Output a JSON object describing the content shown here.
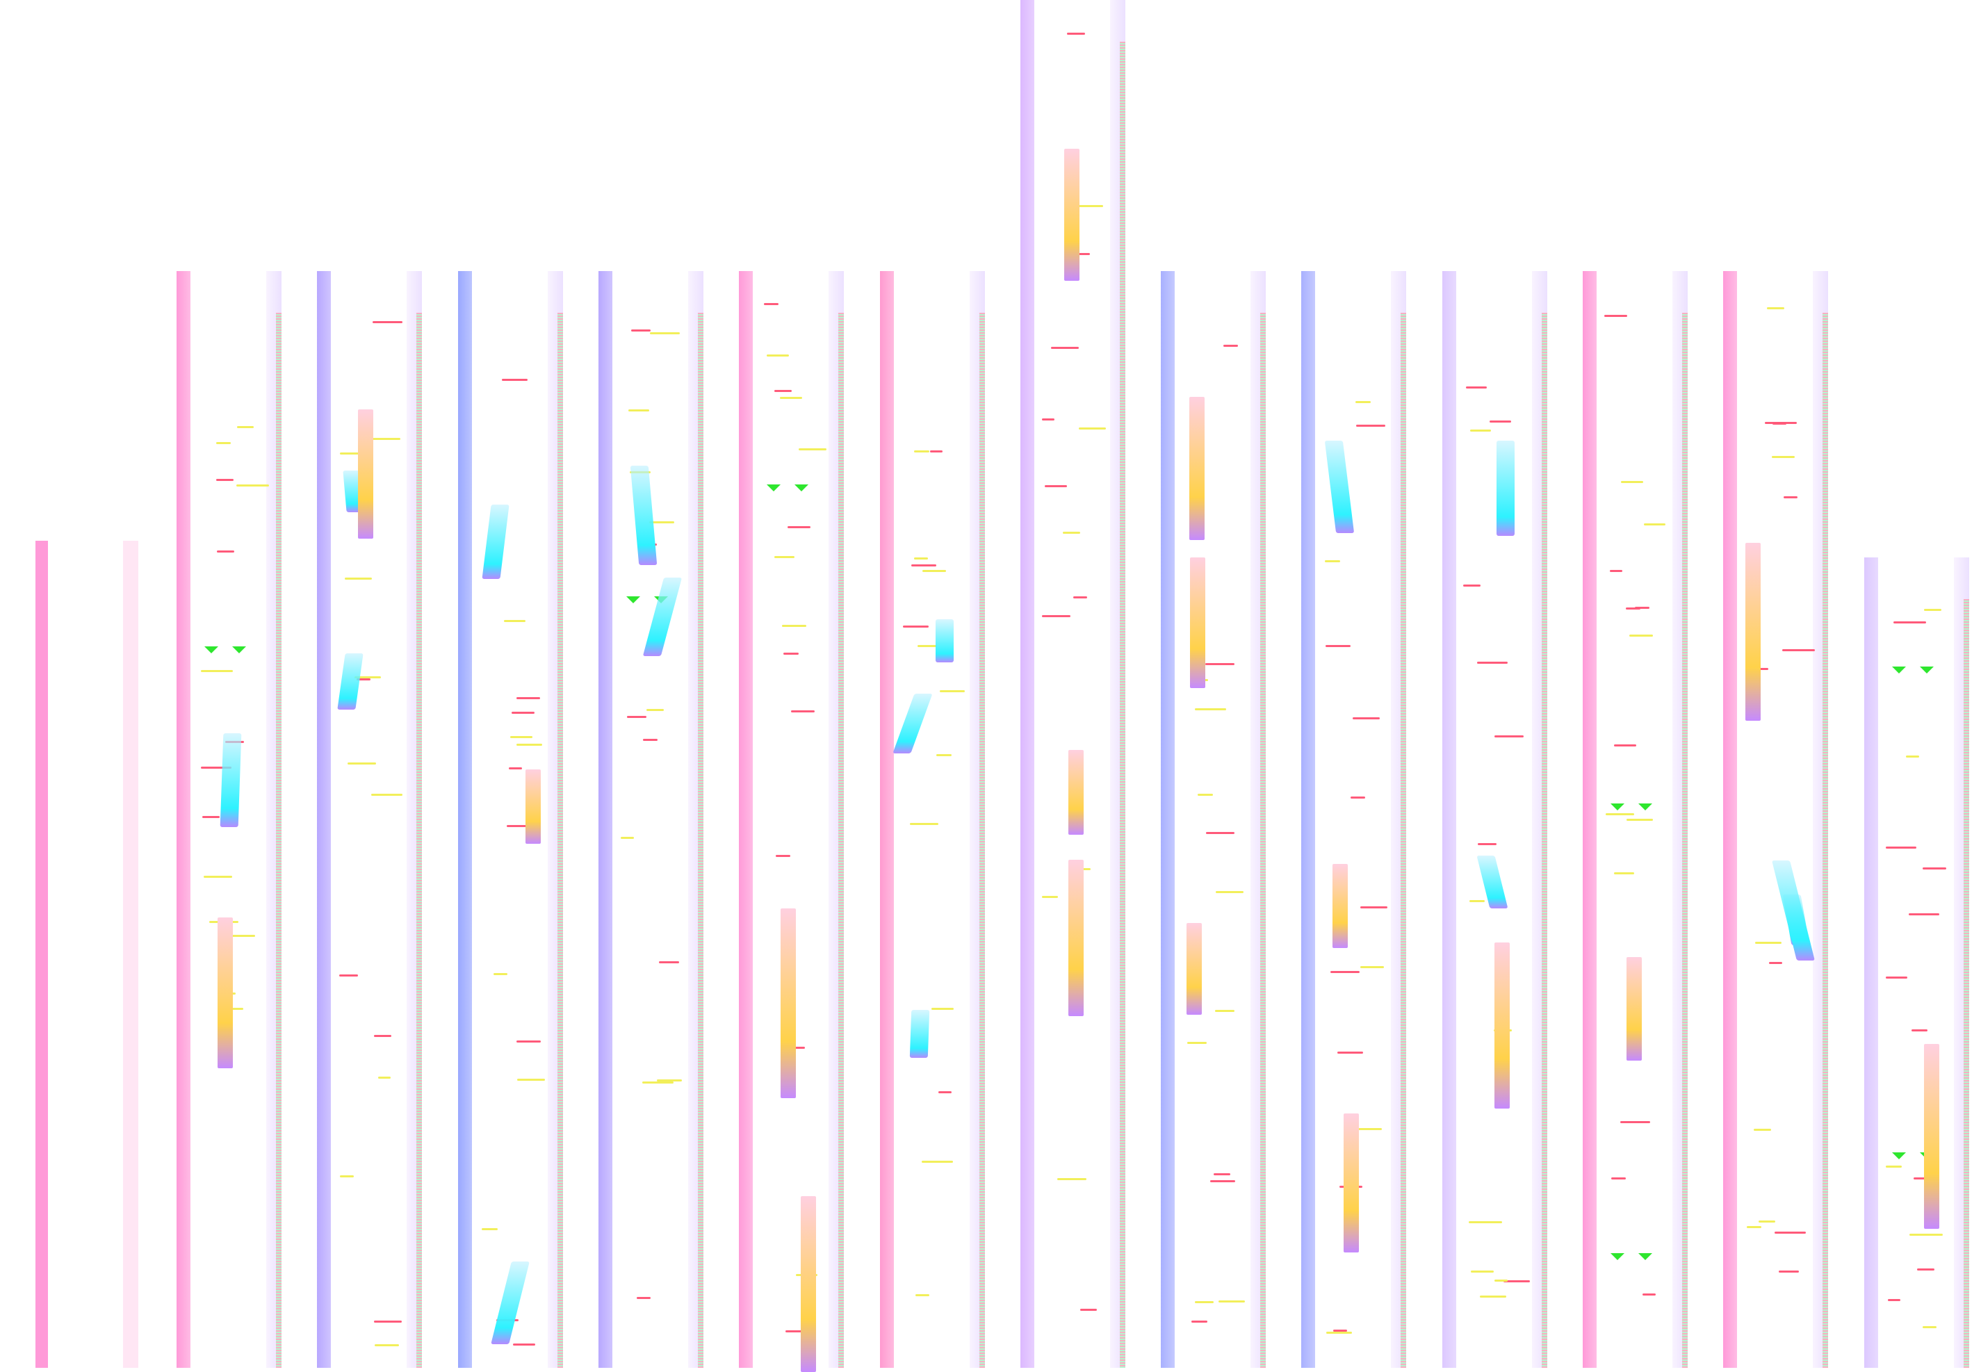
{
  "palette": {
    "background": "#ffffff",
    "pink": "#ff9ad8",
    "violet": "#b8a8ff",
    "lavender": "#dcc8ff",
    "yellow_tick": "#f2ef5a",
    "red_tick": "#ff5a7a",
    "cyan": "#2ef2ff",
    "green": "#2ee62e",
    "orange_bar": "#ffd24a"
  },
  "icons": [
    "green-triangle-marker-icon"
  ]
}
